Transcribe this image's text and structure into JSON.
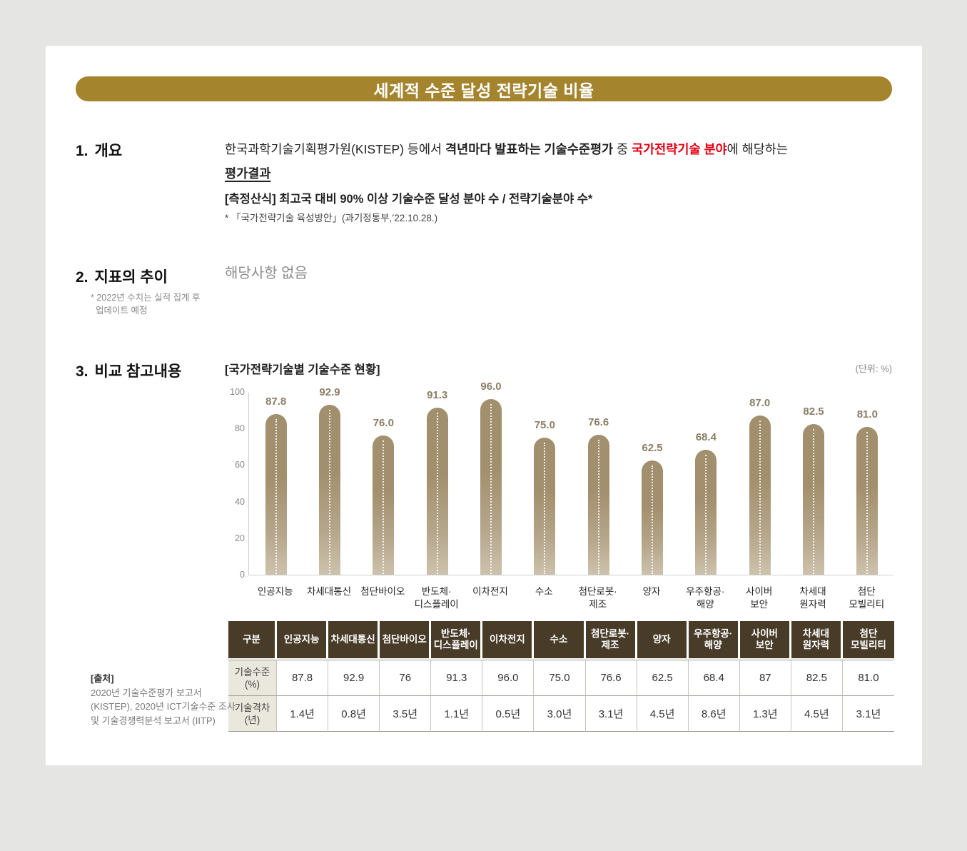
{
  "banner": {
    "title": "세계적 수준 달성 전략기술 비율"
  },
  "section1": {
    "number": "1.",
    "heading": "개요",
    "para": {
      "s1": "한국과학기술기획평가원(KISTEP) 등에서 ",
      "s2": "격년마다 발표하는 기술수준평가",
      "s3": " 중 ",
      "s4": "국가전략기술 분야",
      "s5": "에 해당하는 ",
      "s6": "평가결과"
    },
    "formula": "[측정산식] 최고국 대비 90% 이상 기술수준 달성 분야 수 / 전략기술분야 수*",
    "formula_note": "* 「국가전략기술 육성방안」(과기정통부,’22.10.28.)"
  },
  "section2": {
    "number": "2.",
    "heading": "지표의 추이",
    "note_line1": "* 2022년 수치는 실적 집계 후",
    "note_line2": "업데이트 예정",
    "content": "해당사항 없음"
  },
  "section3": {
    "number": "3.",
    "heading": "비교 참고내용",
    "chart_title": "[국가전략기술별 기술수준 현황]",
    "unit_label": "(단위: %)"
  },
  "chart_data": {
    "type": "bar",
    "title": "[국가전략기술별 기술수준 현황]",
    "unit": "%",
    "categories": [
      "인공지능",
      "차세대통신",
      "첨단바이오",
      "반도체·\n디스플레이",
      "이차전지",
      "수소",
      "첨단로봇·\n제조",
      "양자",
      "우주항공·\n해양",
      "사이버\n보안",
      "차세대\n원자력",
      "첨단\n모빌리티"
    ],
    "values": [
      87.8,
      92.9,
      76.0,
      91.3,
      96.0,
      75.0,
      76.6,
      62.5,
      68.4,
      87.0,
      82.5,
      81.0
    ],
    "value_labels": [
      "87.8",
      "92.9",
      "76.0",
      "91.3",
      "96.0",
      "75.0",
      "76.6",
      "62.5",
      "68.4",
      "87.0",
      "82.5",
      "81.0"
    ],
    "ylim": [
      0,
      100
    ],
    "yticks": [
      0,
      20,
      40,
      60,
      80,
      100
    ],
    "grid": false,
    "legend_position": "none",
    "bar_color": "#a28f6d",
    "value_label_color": "#8c7e64"
  },
  "table": {
    "header": [
      "구분",
      "인공지능",
      "차세대통신",
      "첨단바이오",
      "반도체·\n디스플레이",
      "이차전지",
      "수소",
      "첨단로봇·\n제조",
      "양자",
      "우주항공·\n해양",
      "사이버\n보안",
      "차세대\n원자력",
      "첨단\n모빌리티"
    ],
    "rows": [
      {
        "label": "기술수준\n(%)",
        "cells": [
          "87.8",
          "92.9",
          "76",
          "91.3",
          "96.0",
          "75.0",
          "76.6",
          "62.5",
          "68.4",
          "87",
          "82.5",
          "81.0"
        ]
      },
      {
        "label": "기술격차\n(년)",
        "cells": [
          "1.4년",
          "0.8년",
          "3.5년",
          "1.1년",
          "0.5년",
          "3.0년",
          "3.1년",
          "4.5년",
          "8.6년",
          "1.3년",
          "4.5년",
          "3.1년"
        ]
      }
    ]
  },
  "source": {
    "label": "[출처]",
    "text": "2020년 기술수준평가 보고서 (KISTEP), 2020년 ICT기술수준 조사 및 기술경쟁력분석 보고서 (IITP)"
  },
  "colors": {
    "banner_gold": "#a5842e",
    "header_brown": "#483c29",
    "row_label_beige": "#eae7dc",
    "accent_red": "#e60013",
    "page_bg": "#e5e5e4"
  }
}
